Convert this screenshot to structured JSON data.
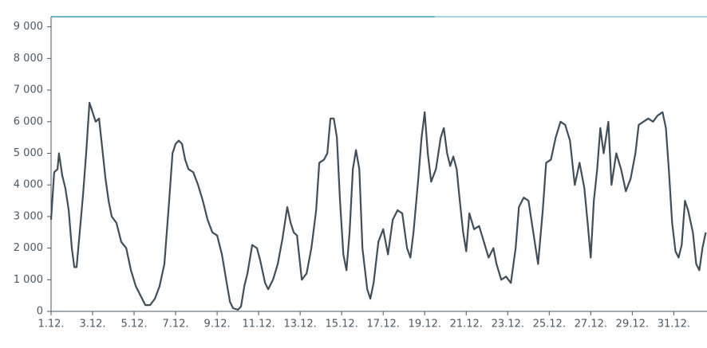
{
  "chart_data": {
    "type": "line",
    "color": "#3e4f5b",
    "x": [
      1.0,
      1.15,
      1.31,
      1.38,
      1.54,
      1.69,
      1.85,
      2.0,
      2.12,
      2.23,
      2.38,
      2.54,
      2.69,
      2.85,
      3.0,
      3.15,
      3.31,
      3.46,
      3.62,
      3.77,
      3.92,
      4.15,
      4.38,
      4.62,
      4.85,
      5.08,
      5.31,
      5.54,
      5.77,
      6.0,
      6.23,
      6.46,
      6.69,
      6.85,
      7.0,
      7.15,
      7.31,
      7.46,
      7.62,
      7.85,
      8.08,
      8.31,
      8.54,
      8.77,
      9.0,
      9.23,
      9.46,
      9.62,
      9.77,
      10.0,
      10.15,
      10.31,
      10.46,
      10.69,
      10.92,
      11.08,
      11.31,
      11.46,
      11.69,
      11.92,
      12.15,
      12.38,
      12.54,
      12.69,
      12.85,
      13.08,
      13.31,
      13.54,
      13.77,
      13.92,
      14.15,
      14.31,
      14.46,
      14.62,
      14.77,
      14.92,
      15.08,
      15.23,
      15.38,
      15.54,
      15.69,
      15.85,
      16.0,
      16.23,
      16.38,
      16.54,
      16.77,
      17.0,
      17.23,
      17.46,
      17.69,
      17.92,
      18.15,
      18.31,
      18.46,
      18.69,
      18.85,
      19.0,
      19.15,
      19.31,
      19.54,
      19.77,
      19.92,
      20.08,
      20.23,
      20.38,
      20.54,
      20.69,
      20.85,
      21.0,
      21.15,
      21.38,
      21.62,
      21.85,
      22.08,
      22.31,
      22.46,
      22.69,
      22.92,
      23.15,
      23.38,
      23.54,
      23.77,
      24.0,
      24.23,
      24.46,
      24.69,
      24.85,
      25.08,
      25.31,
      25.54,
      25.77,
      26.0,
      26.23,
      26.46,
      26.69,
      26.85,
      27.0,
      27.15,
      27.31,
      27.46,
      27.62,
      27.85,
      28.0,
      28.23,
      28.46,
      28.69,
      28.92,
      29.15,
      29.31,
      29.54,
      29.77,
      30.0,
      30.23,
      30.46,
      30.62,
      30.77,
      30.92,
      31.08,
      31.23,
      31.38,
      31.54,
      31.69,
      31.92,
      32.08,
      32.23,
      32.38,
      32.54
    ],
    "values": [
      2900,
      4400,
      4500,
      5000,
      4300,
      3900,
      3200,
      2000,
      1400,
      1400,
      2500,
      3700,
      5000,
      6600,
      6300,
      6000,
      6100,
      5200,
      4200,
      3500,
      3000,
      2800,
      2200,
      2000,
      1300,
      800,
      500,
      200,
      200,
      400,
      800,
      1500,
      3500,
      5000,
      5300,
      5400,
      5300,
      4800,
      4500,
      4400,
      4000,
      3500,
      2900,
      2500,
      2400,
      1800,
      900,
      300,
      100,
      50,
      150,
      800,
      1200,
      2100,
      2000,
      1600,
      900,
      700,
      1000,
      1500,
      2300,
      3300,
      2800,
      2500,
      2400,
      1000,
      1200,
      2000,
      3200,
      4700,
      4800,
      5000,
      6100,
      6100,
      5500,
      3500,
      1800,
      1300,
      2500,
      4500,
      5100,
      4500,
      2000,
      700,
      400,
      900,
      2200,
      2600,
      1800,
      2900,
      3200,
      3100,
      2000,
      1700,
      2500,
      4200,
      5500,
      6300,
      5000,
      4100,
      4500,
      5500,
      5800,
      5000,
      4600,
      4900,
      4500,
      3500,
      2500,
      1900,
      3100,
      2600,
      2700,
      2200,
      1700,
      2000,
      1500,
      1000,
      1100,
      900,
      2000,
      3300,
      3600,
      3500,
      2500,
      1500,
      3200,
      4700,
      4800,
      5500,
      6000,
      5900,
      5400,
      4000,
      4700,
      3900,
      2800,
      1700,
      3500,
      4500,
      5800,
      5000,
      6000,
      4000,
      5000,
      4500,
      3800,
      4200,
      5000,
      5900,
      6000,
      6100,
      6000,
      6200,
      6300,
      5800,
      4400,
      2800,
      1900,
      1700,
      2100,
      3500,
      3200,
      2500,
      1500,
      1300,
      2000,
      2500
    ],
    "xlim": [
      1,
      32.6
    ],
    "xticks": [
      {
        "value": 1,
        "label": "1.12."
      },
      {
        "value": 3,
        "label": "3.12."
      },
      {
        "value": 5,
        "label": "5.12."
      },
      {
        "value": 7,
        "label": "7.12."
      },
      {
        "value": 9,
        "label": "9.12."
      },
      {
        "value": 11,
        "label": "11.12."
      },
      {
        "value": 13,
        "label": "13.12."
      },
      {
        "value": 15,
        "label": "15.12."
      },
      {
        "value": 17,
        "label": "17.12."
      },
      {
        "value": 19,
        "label": "19.12."
      },
      {
        "value": 21,
        "label": "21.12."
      },
      {
        "value": 23,
        "label": "23.12."
      },
      {
        "value": 25,
        "label": "25.12."
      },
      {
        "value": 27,
        "label": "27.12."
      },
      {
        "value": 29,
        "label": "29.12."
      },
      {
        "value": 31,
        "label": "31.12."
      }
    ],
    "ylim": [
      0,
      9320
    ],
    "yticks": [
      0,
      {
        "value": 1000,
        "label": "1 000"
      },
      {
        "value": 2000,
        "label": "2 000"
      },
      {
        "value": 3000,
        "label": "3 000"
      },
      {
        "value": 4000,
        "label": "4 000"
      },
      {
        "value": 5000,
        "label": "5 000"
      },
      {
        "value": 6000,
        "label": "6 000"
      },
      {
        "value": 7000,
        "label": "7 000"
      },
      {
        "value": 8000,
        "label": "8 000"
      },
      {
        "value": 9000,
        "label": "9 000"
      }
    ]
  }
}
